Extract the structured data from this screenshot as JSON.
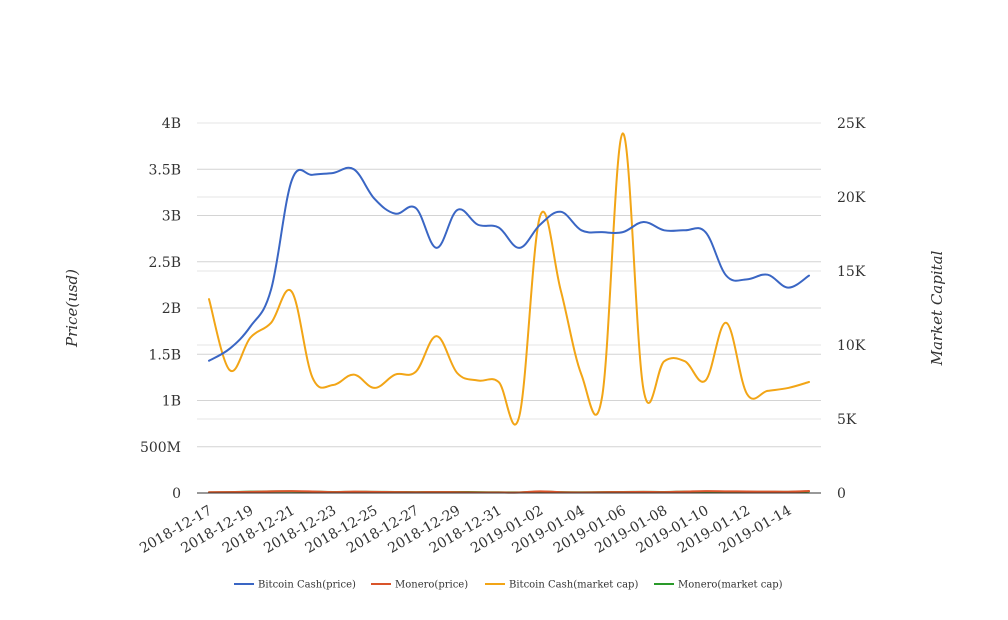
{
  "chart_data": {
    "type": "line",
    "title": "",
    "ylabel_left": "Price(usd)",
    "ylabel_right": "Market Capital",
    "left_axis": {
      "min": 0,
      "max": 4000000000,
      "ticks": [
        0,
        500000000,
        1000000000,
        1500000000,
        2000000000,
        2500000000,
        3000000000,
        3500000000,
        4000000000
      ],
      "tick_labels": [
        "0",
        "500M",
        "1B",
        "1.5B",
        "2B",
        "2.5B",
        "3B",
        "3.5B",
        "4B"
      ]
    },
    "right_axis": {
      "min": 0,
      "max": 25000,
      "ticks": [
        0,
        5000,
        10000,
        15000,
        20000,
        25000
      ],
      "tick_labels": [
        "0",
        "5K",
        "10K",
        "15K",
        "20K",
        "25K"
      ]
    },
    "x_tick_labels": [
      "2018-12-17",
      "2018-12-19",
      "2018-12-21",
      "2018-12-23",
      "2018-12-25",
      "2018-12-27",
      "2018-12-29",
      "2018-12-31",
      "2019-01-02",
      "2019-01-04",
      "2019-01-06",
      "2019-01-08",
      "2019-01-10",
      "2019-01-12",
      "2019-01-14"
    ],
    "x_tick_dates": [
      "2018-12-17",
      "2018-12-19",
      "2018-12-21",
      "2018-12-23",
      "2018-12-25",
      "2018-12-27",
      "2018-12-29",
      "2018-12-31",
      "2019-01-02",
      "2019-01-04",
      "2019-01-06",
      "2019-01-08",
      "2019-01-10",
      "2019-01-12",
      "2019-01-14"
    ],
    "x": [
      "2018-12-17",
      "2018-12-18",
      "2018-12-19",
      "2018-12-20",
      "2018-12-21",
      "2018-12-22",
      "2018-12-23",
      "2018-12-24",
      "2018-12-25",
      "2018-12-26",
      "2018-12-27",
      "2018-12-28",
      "2018-12-29",
      "2018-12-30",
      "2018-12-31",
      "2019-01-01",
      "2019-01-02",
      "2019-01-03",
      "2019-01-04",
      "2019-01-05",
      "2019-01-06",
      "2019-01-07",
      "2019-01-08",
      "2019-01-09",
      "2019-01-10",
      "2019-01-11",
      "2019-01-12",
      "2019-01-13",
      "2019-01-14",
      "2019-01-15"
    ],
    "grid": true,
    "legend_position": "bottom",
    "series": [
      {
        "name": "Bitcoin Cash(price)",
        "axis": "left",
        "color": "#3a66c4",
        "values": [
          1430000000,
          1560000000,
          1800000000,
          2200000000,
          3380000000,
          3440000000,
          3460000000,
          3500000000,
          3180000000,
          3020000000,
          3080000000,
          2650000000,
          3060000000,
          2900000000,
          2870000000,
          2650000000,
          2900000000,
          3040000000,
          2840000000,
          2820000000,
          2820000000,
          2930000000,
          2840000000,
          2840000000,
          2820000000,
          2350000000,
          2310000000,
          2360000000,
          2220000000,
          2350000000
        ]
      },
      {
        "name": "Monero(price)",
        "axis": "left",
        "color": "#d9542a",
        "values": [
          8000000,
          10000000,
          12000000,
          18000000,
          20000000,
          16000000,
          10000000,
          15000000,
          12000000,
          10000000,
          8000000,
          10000000,
          8000000,
          6000000,
          5000000,
          6000000,
          18000000,
          8000000,
          6000000,
          8000000,
          10000000,
          12000000,
          10000000,
          15000000,
          20000000,
          18000000,
          16000000,
          15000000,
          14000000,
          22000000
        ]
      },
      {
        "name": "Bitcoin Cash(market cap)",
        "axis": "right",
        "color": "#f2a516",
        "values": [
          13100,
          8300,
          10500,
          11500,
          13600,
          7800,
          7300,
          8000,
          7100,
          8000,
          8200,
          10600,
          8100,
          7600,
          7500,
          5200,
          18700,
          13700,
          8000,
          6500,
          24300,
          7000,
          8900,
          8900,
          7600,
          11500,
          6700,
          6900,
          7100,
          7500
        ]
      },
      {
        "name": "Monero(market cap)",
        "axis": "right",
        "color": "#2a9a2a",
        "values": [
          40,
          60,
          90,
          110,
          110,
          90,
          70,
          80,
          80,
          70,
          60,
          70,
          70,
          60,
          50,
          40,
          90,
          60,
          50,
          60,
          70,
          80,
          70,
          90,
          100,
          90,
          80,
          80,
          80,
          110
        ]
      }
    ]
  }
}
